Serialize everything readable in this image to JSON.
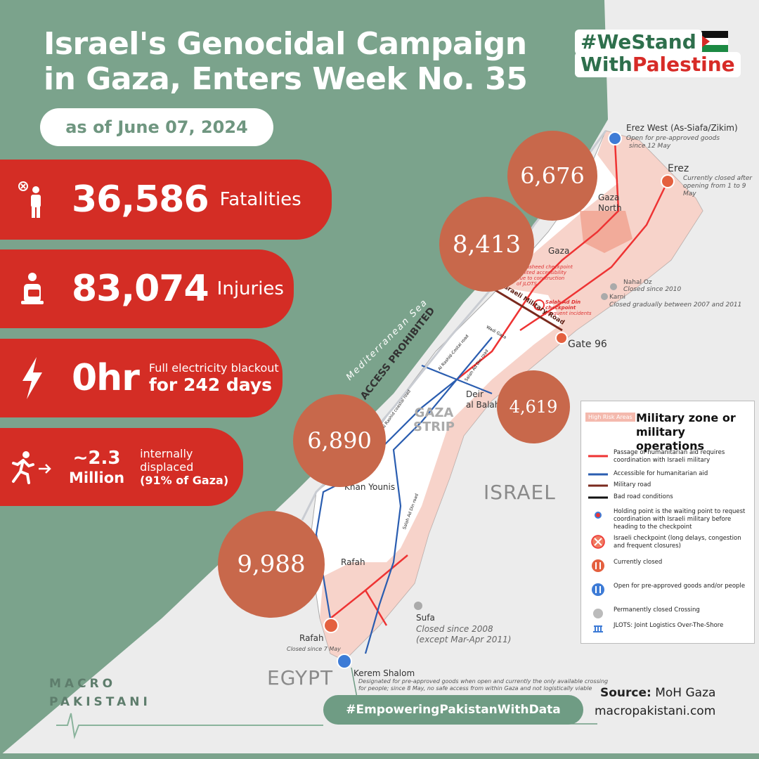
{
  "title_lines": [
    "Israel's Genocidal Campaign",
    "in Gaza, Enters Week No. 35"
  ],
  "date": "as of June 07, 2024",
  "hashtag_top": {
    "line1": "#WeStand",
    "line2_prefix": "With",
    "line2_red": "Palestine"
  },
  "stats": {
    "fatalities": {
      "value": "36,586",
      "label": "Fatalities",
      "icon": "fatality-person-icon"
    },
    "injuries": {
      "value": "83,074",
      "label": "Injuries",
      "icon": "injured-person-icon"
    },
    "electricity": {
      "value": "0hr",
      "label_line1": "Full electricity blackout",
      "label_line2": "for 242 days",
      "icon": "lightning-bolt-icon"
    },
    "displaced": {
      "value_line1": "~2.3",
      "value_line2": "Million",
      "label_line1": "internally",
      "label_line2": "displaced",
      "label_line3": "(91% of Gaza)",
      "icon": "running-person-icon"
    }
  },
  "map": {
    "bubbles": [
      {
        "value": "6,676",
        "region": "Gaza North"
      },
      {
        "value": "8,413",
        "region": "Gaza"
      },
      {
        "value": "4,619",
        "region": "Deir al Balah"
      },
      {
        "value": "6,890",
        "region": "Khan Younis"
      },
      {
        "value": "9,988",
        "region": "Rafah"
      }
    ],
    "region_labels": {
      "gaza_north_1": "Gaza",
      "gaza_north_2": "North",
      "gaza": "Gaza",
      "deir_1": "Deir",
      "deir_2": "al Balah",
      "khan_younis": "Khan Younis",
      "rafah": "Rafah",
      "strip_1": "GAZA",
      "strip_2": "STRIP"
    },
    "countries": {
      "israel": "ISRAEL",
      "egypt": "EGYPT"
    },
    "sea": {
      "name": "Mediterranean Sea",
      "notice": "ACCESS PROHIBITED"
    },
    "crossings": {
      "erez_west": {
        "name": "Erez West (As-Siafa/Zikim)",
        "note1": "Open for pre-approved goods",
        "note2": "since 12 May"
      },
      "erez": {
        "name": "Erez",
        "note1": "Currently closed after",
        "note2": "opening from 1 to 9 May"
      },
      "nahal_oz": {
        "name": "Nahal Oz",
        "note": "Closed since 2010"
      },
      "karni": {
        "name": "Karni",
        "note": "Closed gradually between 2007 and 2011"
      },
      "gate96": {
        "name": "Gate 96"
      },
      "sufa": {
        "name": "Sufa",
        "note1": "Closed since  2008",
        "note2": "(except Mar-Apr 2011)"
      },
      "rafah": {
        "name": "Rafah",
        "note": "Closed since 7 May"
      },
      "kerem_shalom": {
        "name": "Kerem Shalom",
        "note1": "Designated for pre-approved goods when open and currently the only available crossing",
        "note2": "for people; since 8 May, no safe access from within Gaza and not logistically viable"
      }
    },
    "checkpoints": {
      "rasheed": {
        "line1": "Al Rasheed checkpoint",
        "line2": "Limited accessibility",
        "line3": "due to  construction",
        "line4": "of JLOTS"
      },
      "salah": {
        "line1": "Salah Ad Din",
        "line2": "checkpoint",
        "line3": "Frequent incidents"
      }
    },
    "roads": {
      "military_road": "Israeli Military Road",
      "salah_ad_din": "Salah Ad Din road",
      "al_rashid": "Al Rashid-Costal road",
      "wadi_gaza": "Wadi Gaza",
      "coastal": "Al Rashid coastal road"
    }
  },
  "legend": {
    "badge": "High Risk Areas",
    "title_line1": "Military zone or",
    "title_line2": "military operations",
    "items": [
      {
        "symbol": "red-line",
        "text": "Passage of humanitarian aid requires coordination with Israeli military"
      },
      {
        "symbol": "blue-line",
        "text": "Accessible for humanitarian aid"
      },
      {
        "symbol": "dark-red-line",
        "text": "Military road"
      },
      {
        "symbol": "black-line",
        "text": "Bad road conditions"
      },
      {
        "symbol": "holding-point-icon",
        "text": "Holding point is the waiting point to request coordination with Israeli military before heading to the checkpoint"
      },
      {
        "symbol": "checkpoint-icon",
        "text": "Israeli checkpoint (long delays, congestion and frequent closures)"
      },
      {
        "symbol": "closed-crossing-icon",
        "text": "Currently closed"
      },
      {
        "symbol": "open-crossing-icon",
        "text": "Open for pre-approved goods and/or people"
      },
      {
        "symbol": "permanently-closed-icon",
        "text": "Permanently closed Crossing"
      },
      {
        "symbol": "jlots-icon",
        "text": "JLOTS: Joint Logistics Over-The-Shore"
      }
    ]
  },
  "footer": {
    "hashtag": "#EmpoweringPakistanWithData",
    "source_label": "Source:",
    "source_value": " MoH Gaza",
    "website": "macropakistani.com",
    "logo_line1": "MACRO",
    "logo_line2": "PAKISTANI"
  },
  "colors": {
    "green": "#7ba38c",
    "red": "#d42d25",
    "bubble": "#c8684b",
    "risk_zone": "#f4c4b8"
  }
}
